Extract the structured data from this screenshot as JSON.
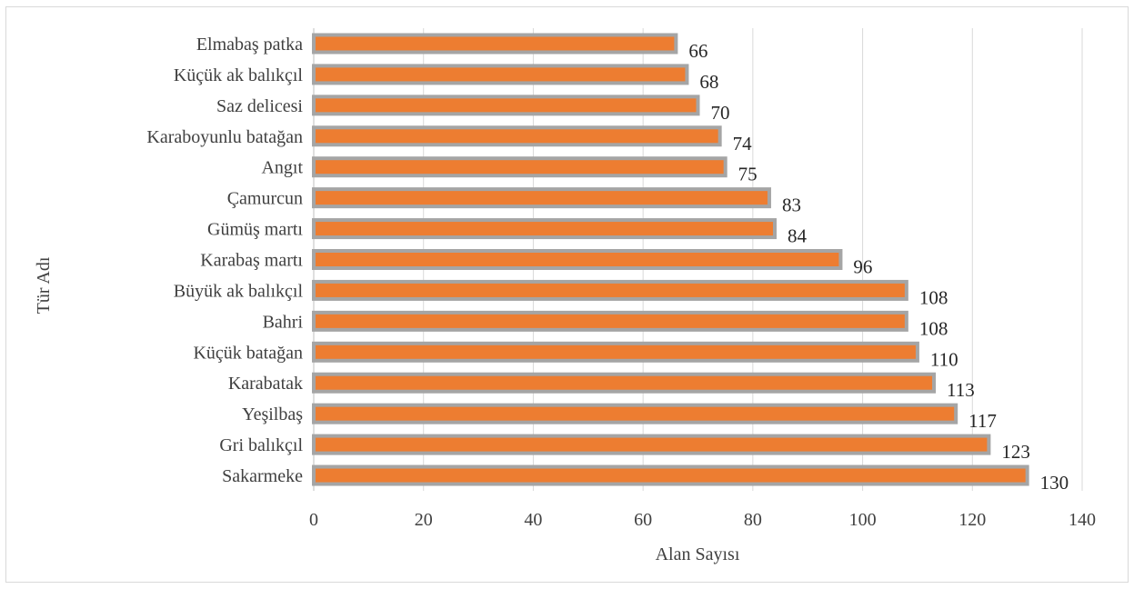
{
  "chart_data": {
    "type": "bar",
    "orientation": "horizontal",
    "categories": [
      "Elmabaş patka",
      "Küçük ak balıkçıl",
      "Saz delicesi",
      "Karaboyunlu batağan",
      "Angıt",
      "Çamurcun",
      "Gümüş martı",
      "Karabaş martı",
      "Büyük ak balıkçıl",
      "Bahri",
      "Küçük batağan",
      "Karabatak",
      "Yeşilbaş",
      "Gri balıkçıl",
      "Sakarmeke"
    ],
    "values": [
      66,
      68,
      70,
      74,
      75,
      83,
      84,
      96,
      108,
      108,
      110,
      113,
      117,
      123,
      130
    ],
    "data_labels": [
      "66",
      "68",
      "70",
      "74",
      "75",
      "83",
      "84",
      "96",
      "108",
      "108",
      "110",
      "113",
      "117",
      "123",
      "130"
    ],
    "xlabel": "Alan Sayısı",
    "ylabel": "Tür Adı",
    "xlim": [
      0,
      140
    ],
    "xticks": [
      "0",
      "20",
      "40",
      "60",
      "80",
      "100",
      "120",
      "140"
    ],
    "grid": true,
    "legend": "none",
    "colors": {
      "bar_fill": "#ED7D31",
      "bar_outline": "#A5A5A5",
      "grid": "#D9D9D9"
    }
  }
}
